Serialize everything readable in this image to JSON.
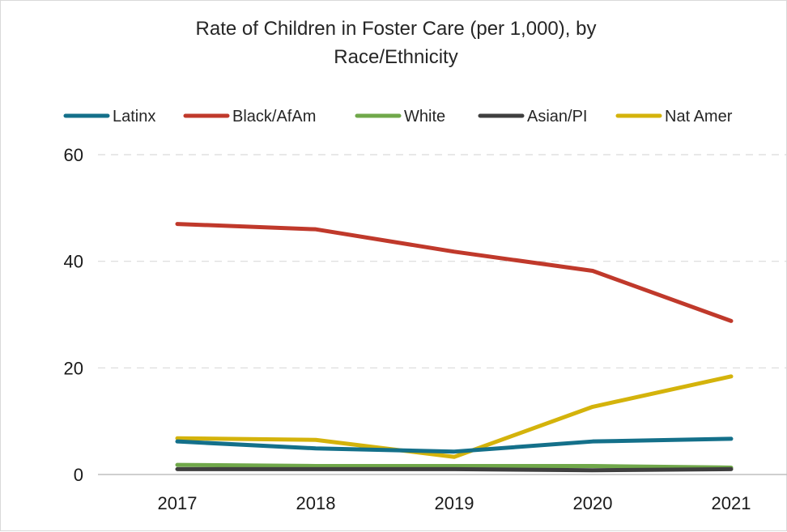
{
  "chart_data": {
    "type": "line",
    "title": "Rate of Children in Foster Care (per 1,000), by Race/Ethnicity",
    "title_lines": [
      "Rate of Children in Foster Care (per 1,000), by",
      "Race/Ethnicity"
    ],
    "categories": [
      "2017",
      "2018",
      "2019",
      "2020",
      "2021"
    ],
    "ylim": [
      0,
      60
    ],
    "yticks": [
      0,
      20,
      40,
      60
    ],
    "grid": true,
    "legend_position": "top",
    "series": [
      {
        "name": "Latinx",
        "color": "#14708a",
        "values": [
          6.2,
          4.9,
          4.3,
          6.2,
          6.7
        ]
      },
      {
        "name": "Black/AfAm",
        "color": "#c0392b",
        "values": [
          47.0,
          46.0,
          41.8,
          38.2,
          28.8
        ]
      },
      {
        "name": "White",
        "color": "#70a84a",
        "values": [
          1.8,
          1.6,
          1.6,
          1.6,
          1.3
        ]
      },
      {
        "name": "Asian/PI",
        "color": "#3f3f3f",
        "values": [
          1.0,
          1.0,
          1.0,
          0.8,
          1.0
        ]
      },
      {
        "name": "Nat Amer",
        "color": "#d4b30b",
        "values": [
          6.8,
          6.5,
          3.3,
          12.7,
          18.4
        ]
      }
    ]
  }
}
